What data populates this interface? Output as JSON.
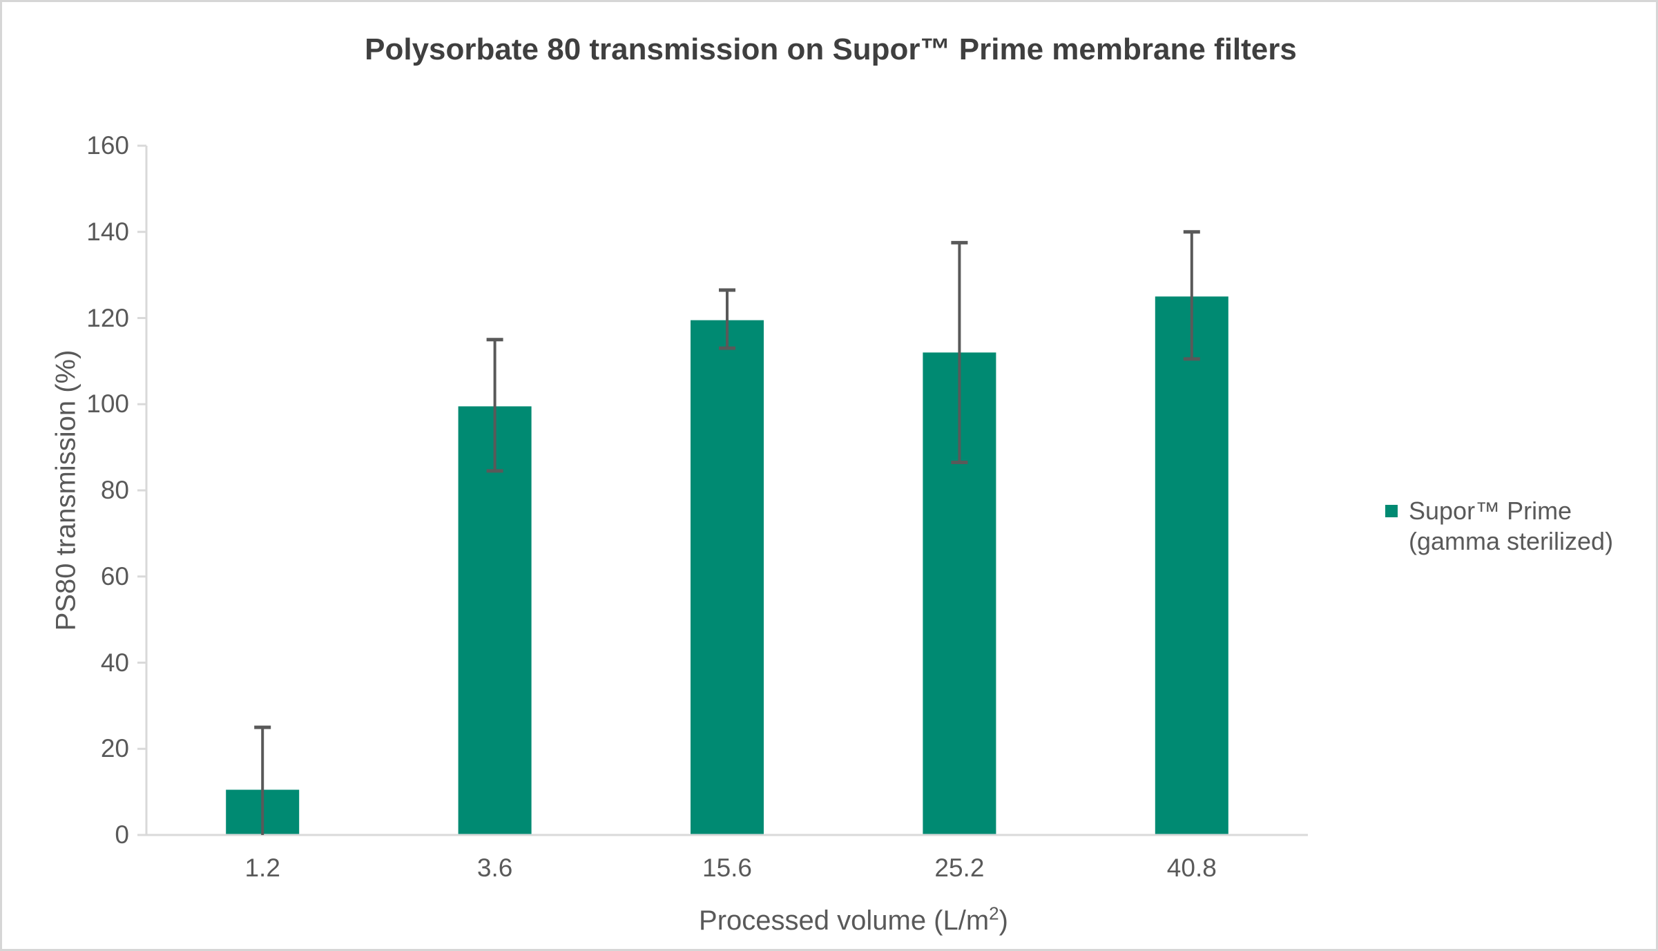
{
  "title": "Polysorbate 80 transmission on Supor™ Prime membrane filters",
  "y_axis": {
    "label": "PS80 transmission (%)"
  },
  "x_axis": {
    "label_prefix": "Processed volume (L/m",
    "label_sup": "2",
    "label_suffix": ")"
  },
  "legend": {
    "line1": "Supor™ Prime",
    "line2": "(gamma sterilized)"
  },
  "colors": {
    "bar": "#008A72",
    "error_bar": "#595959",
    "axis_line": "#D9D9D9",
    "tick_text": "#595959",
    "title_text": "#3F3F3F",
    "border": "#D6D6D6"
  },
  "chart_data": {
    "type": "bar",
    "title": "Polysorbate 80 transmission on Supor™ Prime membrane filters",
    "xlabel": "Processed volume (L/m²)",
    "ylabel": "PS80 transmission (%)",
    "categories": [
      "1.2",
      "3.6",
      "15.6",
      "25.2",
      "40.8"
    ],
    "series": [
      {
        "name": "Supor™ Prime (gamma sterilized)",
        "values": [
          10.5,
          99.5,
          119.5,
          112,
          125
        ],
        "error_bar_top": [
          25,
          115,
          126.5,
          137.5,
          140
        ],
        "error_bar_bottom": [
          0,
          84.5,
          113,
          86.5,
          110.5
        ]
      }
    ],
    "ylim": [
      0,
      160
    ],
    "yticks": [
      0,
      20,
      40,
      60,
      80,
      100,
      120,
      140,
      160
    ],
    "grid": false,
    "legend_position": "right"
  }
}
